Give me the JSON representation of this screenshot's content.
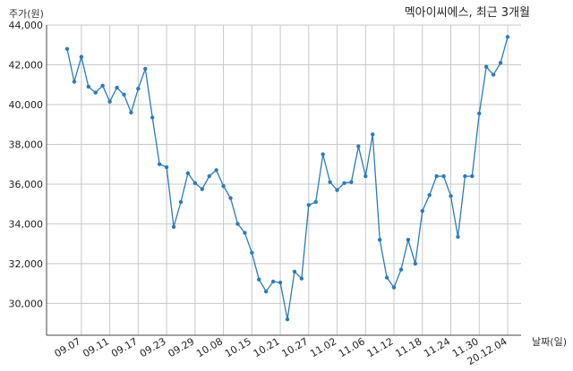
{
  "chart_data": {
    "type": "line",
    "title": "멕아이씨에스, 최근 3개월",
    "ylabel": "주가(원)",
    "xlabel": "날짜(일)",
    "ylim": [
      28400,
      44000
    ],
    "yticks": [
      30000,
      32000,
      34000,
      36000,
      38000,
      40000,
      42000,
      44000
    ],
    "ytick_labels": [
      "30,000",
      "32,000",
      "34,000",
      "36,000",
      "38,000",
      "40,000",
      "42,000",
      "44,000"
    ],
    "grid": true,
    "color": "#2b7bb9",
    "x": [
      "09.03",
      "09.04",
      "09.07",
      "09.08",
      "09.09",
      "09.10",
      "09.11",
      "09.14",
      "09.15",
      "09.16",
      "09.17",
      "09.18",
      "09.21",
      "09.22",
      "09.23",
      "09.24",
      "09.25",
      "09.28",
      "09.29",
      "10.05",
      "10.06",
      "10.07",
      "10.08",
      "10.12",
      "10.13",
      "10.14",
      "10.15",
      "10.16",
      "10.19",
      "10.20",
      "10.21",
      "10.22",
      "10.23",
      "10.26",
      "10.27",
      "10.28",
      "10.29",
      "10.30",
      "11.02",
      "11.03",
      "11.04",
      "11.05",
      "11.06",
      "11.09",
      "11.10",
      "11.11",
      "11.12",
      "11.13",
      "11.16",
      "11.17",
      "11.18",
      "11.19",
      "11.20",
      "11.23",
      "11.24",
      "11.25",
      "11.26",
      "11.27",
      "11.30",
      "12.01",
      "12.02",
      "12.03",
      "20.12.04"
    ],
    "xtick_labels": [
      "09.07",
      "09.11",
      "09.17",
      "09.23",
      "09.29",
      "10.08",
      "10.15",
      "10.21",
      "10.27",
      "11.02",
      "11.06",
      "11.12",
      "11.18",
      "11.24",
      "11.30",
      "20.12.04"
    ],
    "values": [
      42800,
      41150,
      42400,
      40900,
      40600,
      40950,
      40150,
      40850,
      40500,
      39600,
      40800,
      41800,
      39350,
      37000,
      36850,
      33850,
      35100,
      36550,
      36050,
      35750,
      36400,
      36700,
      35900,
      35300,
      34000,
      33550,
      32550,
      31200,
      30600,
      31100,
      31050,
      29200,
      31600,
      31250,
      34950,
      35100,
      37500,
      36100,
      35700,
      36050,
      36100,
      37900,
      36400,
      38500,
      33200,
      31300,
      30800,
      31700,
      33200,
      32000,
      34650,
      35450,
      36400,
      36400,
      35400,
      33350,
      36400,
      36400,
      39550,
      41900,
      41500,
      42100,
      43400
    ]
  }
}
